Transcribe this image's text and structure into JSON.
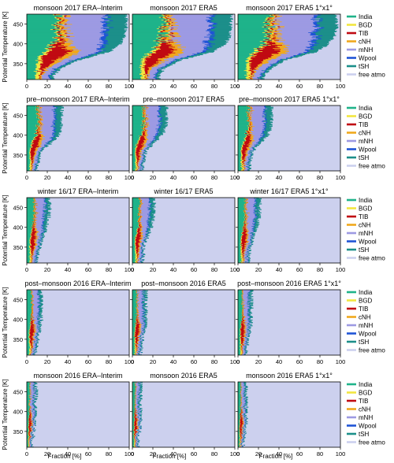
{
  "figure": {
    "ylabel": "Potential Temperature [K]",
    "xlabel": "Fraction [%]"
  },
  "legend": [
    {
      "label": "India",
      "color": "#1fb38a"
    },
    {
      "label": "BGD",
      "color": "#f2e640"
    },
    {
      "label": "TIB",
      "color": "#c00a12"
    },
    {
      "label": "cNH",
      "color": "#f0a81c"
    },
    {
      "label": "mNH",
      "color": "#9d9ae3"
    },
    {
      "label": "Wpool",
      "color": "#1f54d6"
    },
    {
      "label": "tSH",
      "color": "#1c8f8a"
    },
    {
      "label": "free atmo",
      "color": "#ccd0ee"
    }
  ],
  "chart_data": {
    "type": "area",
    "layout": "small multiples, 5 rows x 3 columns, stacked horizontal fractions",
    "xlim": [
      0,
      100
    ],
    "ylim": [
      310,
      475
    ],
    "xticks": [
      0,
      20,
      40,
      60,
      80,
      100
    ],
    "yticks": [
      350,
      400,
      450
    ],
    "seasons": [
      {
        "key": "m17",
        "titles": [
          "monsoon 2017 ERA–Interim",
          "monsoon 2017 ERA5",
          "monsoon 2017 ERA5 1°x1°"
        ]
      },
      {
        "key": "pm17",
        "titles": [
          "pre–monsoon 2017 ERA–Interim",
          "pre–monsoon 2017 ERA5",
          "pre–monsoon 2017 ERA5 1°x1°"
        ]
      },
      {
        "key": "w1617",
        "titles": [
          "winter 16/17 ERA–Interim",
          "winter 16/17 ERA5",
          "winter 16/17 ERA5 1°x1°"
        ]
      },
      {
        "key": "pom16",
        "titles": [
          "post–monsoon 2016 ERA–Interim",
          "post–monsoon 2016 ERA5",
          "post–monsoon 2016 ERA5 1°x1°"
        ]
      },
      {
        "key": "m16",
        "titles": [
          "monsoon 2016 ERA–Interim",
          "monsoon 2016 ERA5",
          "monsoon 2016 ERA5 1°x1°"
        ]
      }
    ],
    "profile_levels": [
      320,
      340,
      360,
      380,
      400,
      420,
      440,
      460,
      475
    ],
    "profiles": {
      "m17": [
        [
          26,
          33,
          51,
          80,
          91,
          95,
          97,
          97,
          97
        ],
        [
          26,
          31,
          47,
          78,
          90,
          95,
          96,
          96,
          97
        ],
        [
          25,
          32,
          46,
          76,
          88,
          94,
          96,
          96,
          96
        ]
      ],
      "pm17": [
        [
          10,
          12,
          14,
          23,
          31,
          34,
          34,
          34,
          34
        ],
        [
          10,
          11,
          13,
          20,
          29,
          32,
          33,
          33,
          33
        ],
        [
          11,
          12,
          14,
          21,
          29,
          32,
          33,
          33,
          33
        ]
      ],
      "w1617": [
        [
          10,
          12,
          13,
          16,
          19,
          21,
          22,
          22,
          22
        ],
        [
          10,
          11,
          12,
          15,
          18,
          20,
          21,
          21,
          21
        ],
        [
          10,
          11,
          13,
          15,
          18,
          20,
          21,
          21,
          21
        ]
      ],
      "pom16": [
        [
          8,
          10,
          11,
          13,
          14,
          14,
          14,
          14,
          14
        ],
        [
          8,
          9,
          10,
          12,
          13,
          13,
          13,
          13,
          13
        ],
        [
          8,
          9,
          10,
          12,
          13,
          13,
          13,
          13,
          13
        ]
      ],
      "m16": [
        [
          5,
          6,
          7,
          8,
          8,
          8,
          9,
          9,
          9
        ],
        [
          5,
          6,
          7,
          8,
          8,
          8,
          8,
          8,
          8
        ],
        [
          5,
          6,
          7,
          8,
          8,
          8,
          8,
          8,
          8
        ]
      ]
    }
  }
}
